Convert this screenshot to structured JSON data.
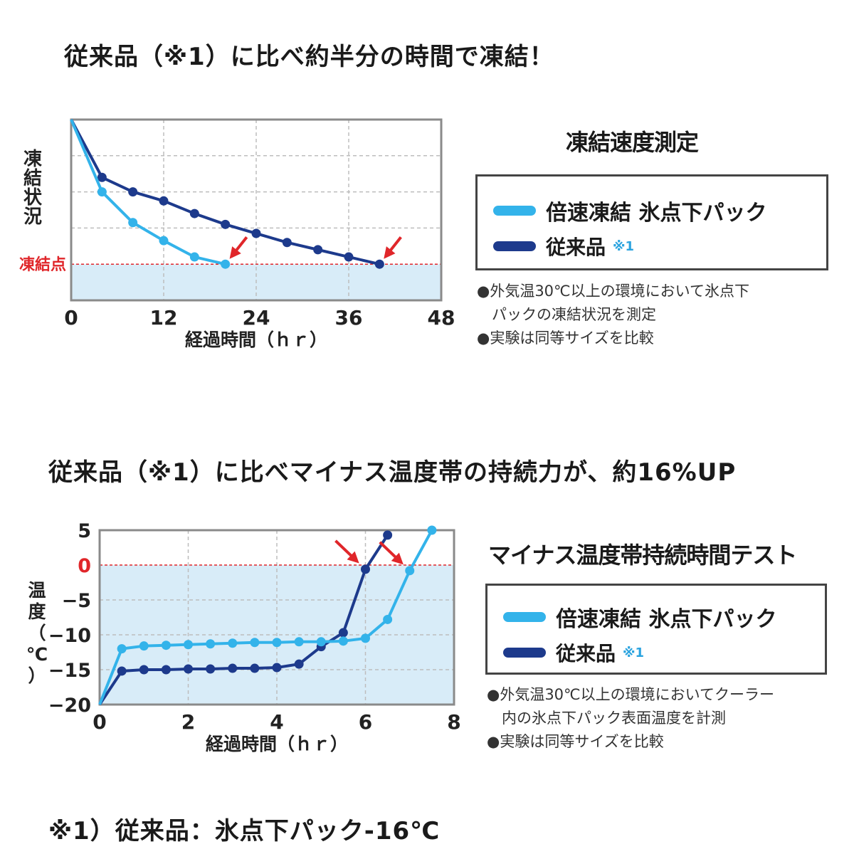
{
  "headings": {
    "h1": "従来品（※1）に比べ約半分の時間で凍結！",
    "h2": "従来品（※1）に比べマイナス温度帯の持続力が、約16%UP",
    "footnote": "※1）従来品：氷点下パック-16℃"
  },
  "colors": {
    "new_series": "#33b3ea",
    "old_series": "#1d3a8c",
    "fill": "#d8ecf8",
    "threshold": "#e0262a",
    "arrow": "#e0262a",
    "frame": "#8a8a8a",
    "grid": "#bdbdbd"
  },
  "panel1": {
    "title": "凍結速度測定",
    "legend": {
      "new_label": "倍速凍結 氷点下パック",
      "old_label": "従来品",
      "old_note": "※1"
    },
    "notes": [
      "●外気温30℃以上の環境において氷点下",
      "　パックの凍結状況を測定",
      "●実験は同等サイズを比較"
    ]
  },
  "panel2": {
    "title": "マイナス温度帯持続時間テスト",
    "legend": {
      "new_label": "倍速凍結 氷点下パック",
      "old_label": "従来品",
      "old_note": "※1"
    },
    "notes": [
      "●外気温30℃以上の環境においてクーラー",
      "　内の氷点下パック表面温度を計測",
      "●実験は同等サイズを比較"
    ]
  },
  "chart_data": [
    {
      "type": "line",
      "ylabel": "凍結状況",
      "xlabel": "経過時間（ｈｒ）",
      "xticks": [
        0,
        12,
        24,
        36,
        48
      ],
      "xlim": [
        0,
        48
      ],
      "ylim": [
        0,
        100
      ],
      "threshold": {
        "label": "凍結点",
        "value": 20
      },
      "grid": true,
      "series": [
        {
          "name": "倍速凍結 氷点下パック",
          "x": [
            0,
            4,
            8,
            12,
            16,
            20
          ],
          "y": [
            100,
            60,
            43,
            33,
            24,
            20
          ]
        },
        {
          "name": "従来品",
          "x": [
            0,
            4,
            8,
            12,
            16,
            20,
            24,
            28,
            32,
            36,
            40
          ],
          "y": [
            100,
            68,
            60,
            55,
            48,
            42,
            37,
            32,
            28,
            24,
            20
          ]
        }
      ],
      "arrows_at": [
        {
          "series": 0,
          "x": 20,
          "y": 20
        },
        {
          "series": 1,
          "x": 40,
          "y": 20
        }
      ]
    },
    {
      "type": "line",
      "ylabel": "温度（℃）",
      "xlabel": "経過時間（ｈｒ）",
      "xticks": [
        0,
        2,
        4,
        6,
        8
      ],
      "yticks": [
        5,
        0,
        -5,
        -10,
        -15,
        -20
      ],
      "xlim": [
        0,
        8
      ],
      "ylim": [
        -20,
        5
      ],
      "threshold": {
        "value": 0
      },
      "grid": true,
      "series": [
        {
          "name": "倍速凍結 氷点下パック",
          "x": [
            0,
            0.5,
            1,
            1.5,
            2,
            2.5,
            3,
            3.5,
            4,
            4.5,
            5,
            5.5,
            6,
            6.5,
            7,
            7.5
          ],
          "y": [
            -20,
            -12,
            -11.6,
            -11.5,
            -11.4,
            -11.3,
            -11.2,
            -11.1,
            -11.1,
            -11.0,
            -11.0,
            -10.9,
            -10.5,
            -7.8,
            -0.8,
            5
          ]
        },
        {
          "name": "従来品",
          "x": [
            0,
            0.5,
            1,
            1.5,
            2,
            2.5,
            3,
            3.5,
            4,
            4.5,
            5,
            5.5,
            6,
            6.5
          ],
          "y": [
            -20,
            -15.2,
            -15.0,
            -15.0,
            -14.9,
            -14.9,
            -14.8,
            -14.8,
            -14.7,
            -14.2,
            -11.7,
            -9.7,
            -0.6,
            4.3
          ]
        }
      ],
      "arrows_at": [
        {
          "series": 1,
          "x": 6,
          "y": -0.6
        },
        {
          "series": 0,
          "x": 7,
          "y": -0.8
        }
      ]
    }
  ]
}
